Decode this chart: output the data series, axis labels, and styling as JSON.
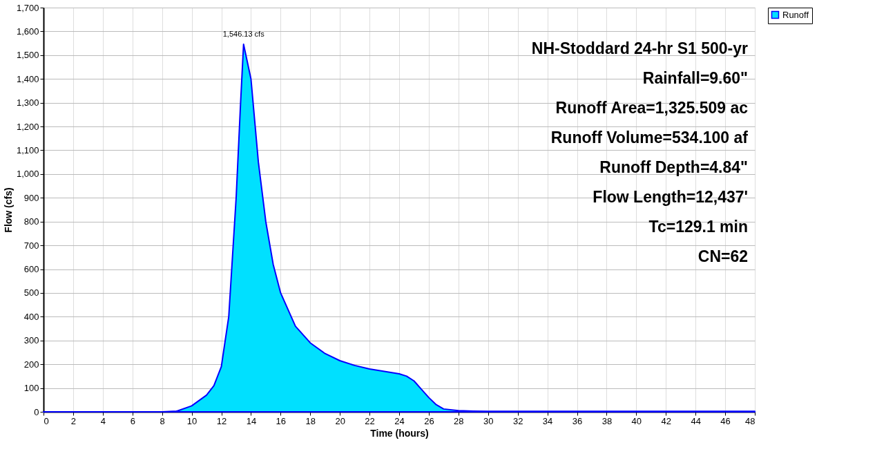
{
  "chart_data": {
    "type": "area",
    "xlabel": "Time  (hours)",
    "ylabel": "Flow  (cfs)",
    "x": [
      0,
      2,
      4,
      6,
      8,
      9,
      10,
      11,
      11.5,
      12,
      12.5,
      13,
      13.3,
      13.5,
      14,
      14.5,
      15,
      15.5,
      16,
      17,
      18,
      19,
      20,
      21,
      22,
      23,
      24,
      24.5,
      25,
      25.5,
      26,
      26.5,
      27,
      28,
      29,
      30,
      34,
      40,
      48
    ],
    "series": [
      {
        "name": "Runoff",
        "color": "#00e0ff",
        "values": [
          0,
          0,
          0,
          0,
          0,
          3,
          25,
          70,
          110,
          190,
          400,
          900,
          1300,
          1546,
          1400,
          1050,
          800,
          620,
          500,
          360,
          290,
          245,
          215,
          195,
          180,
          170,
          160,
          150,
          130,
          95,
          60,
          30,
          12,
          5,
          3,
          2,
          2,
          2,
          2
        ]
      }
    ],
    "xlim": [
      0,
      48
    ],
    "xticks": [
      0,
      2,
      4,
      6,
      8,
      10,
      12,
      14,
      16,
      18,
      20,
      22,
      24,
      26,
      28,
      30,
      32,
      34,
      36,
      38,
      40,
      42,
      44,
      46,
      48
    ],
    "ylim": [
      0,
      1700
    ],
    "yticks": [
      0,
      100,
      200,
      300,
      400,
      500,
      600,
      700,
      800,
      900,
      {
        "value": 1000,
        "label": "1,000"
      },
      {
        "value": 1100,
        "label": "1,100"
      },
      {
        "value": 1200,
        "label": "1,200"
      },
      {
        "value": 1300,
        "label": "1,300"
      },
      {
        "value": 1400,
        "label": "1,400"
      },
      {
        "value": 1500,
        "label": "1,500"
      },
      {
        "value": 1600,
        "label": "1,600"
      },
      {
        "value": 1700,
        "label": "1,700"
      }
    ],
    "grid": true,
    "legend": "top right",
    "annotations": [
      {
        "text": "1,546.13 cfs",
        "x": 13.5,
        "y": 1546.13
      },
      "NH-Stoddard 24-hr S1 500-yr",
      "Rainfall=9.60\"",
      "Runoff Area=1,325.509 ac",
      "Runoff Volume=534.100 af",
      "Runoff Depth=4.84\"",
      "Flow Length=12,437'",
      "Tc=129.1 min",
      "CN=62"
    ]
  }
}
